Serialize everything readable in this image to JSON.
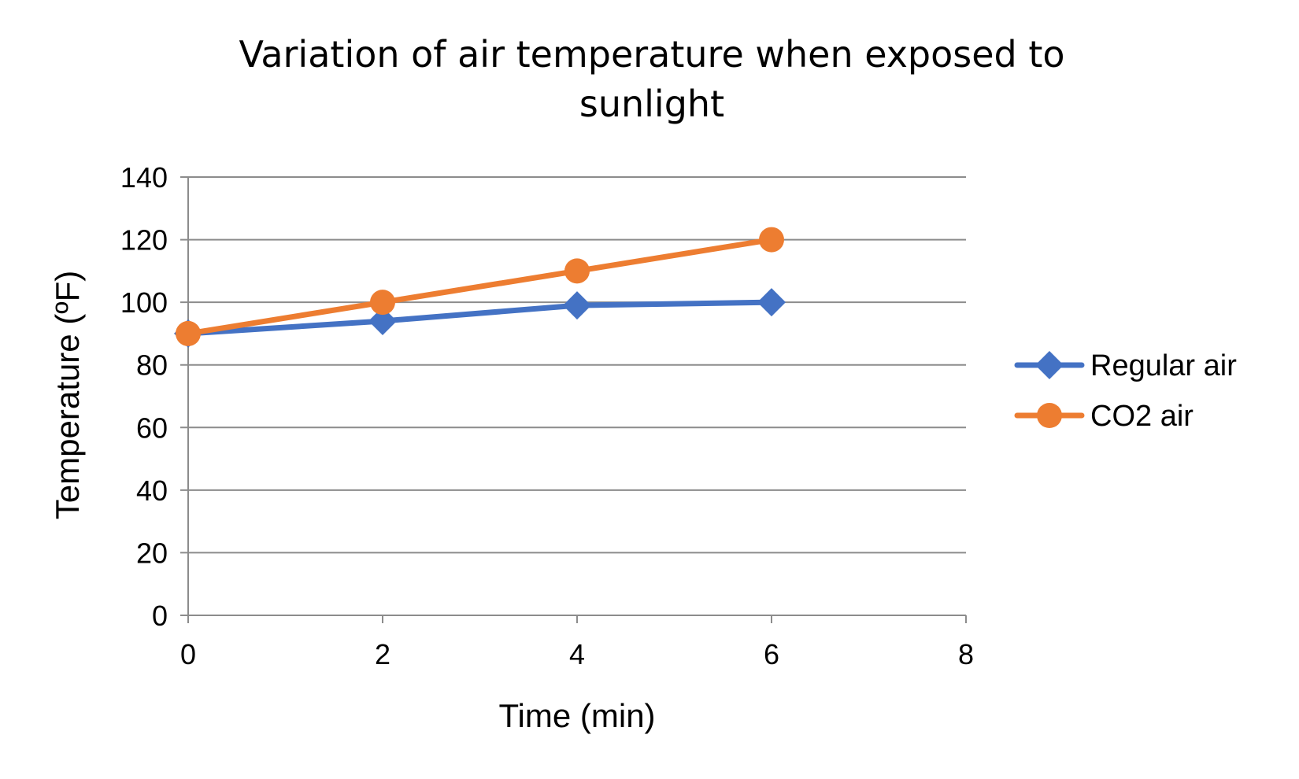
{
  "chart_data": {
    "type": "line",
    "title_lines": [
      "Variation of air temperature when exposed to",
      "sunlight"
    ],
    "xlabel": "Time (min)",
    "ylabel": "Temperature (ºF)",
    "xlim": [
      0,
      8
    ],
    "ylim": [
      0,
      140
    ],
    "xticks": [
      0,
      2,
      4,
      6,
      8
    ],
    "yticks": [
      0,
      20,
      40,
      60,
      80,
      100,
      120,
      140
    ],
    "grid": true,
    "legend_position": "right",
    "x": [
      0,
      2,
      4,
      6
    ],
    "series": [
      {
        "name": "Regular air",
        "values": [
          90,
          94,
          99,
          100
        ],
        "color": "#4472C4",
        "marker": "diamond"
      },
      {
        "name": "CO2 air",
        "values": [
          90,
          100,
          110,
          120
        ],
        "color": "#ED7D31",
        "marker": "circle"
      }
    ]
  }
}
